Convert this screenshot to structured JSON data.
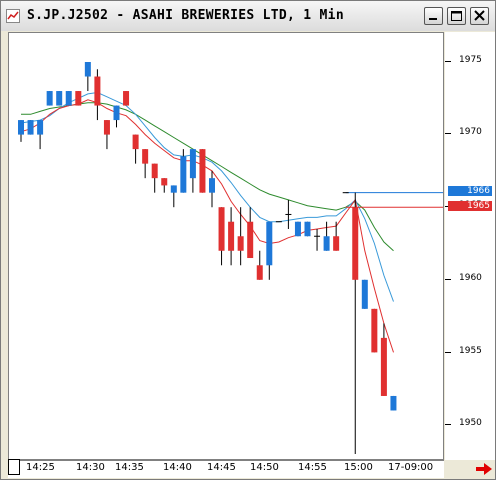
{
  "window": {
    "title": "S.JP.J2502 - ASAHI BREWERIES LTD, 1 Min",
    "controls": [
      "minimize",
      "maximize",
      "close"
    ]
  },
  "icons": {
    "app": "chart-app-icon",
    "nav": "red-right-arrow-icon"
  },
  "colors": {
    "up_bar": "#1e78d8",
    "down_bar": "#e03030",
    "ma_fast": "#e03030",
    "ma_mid": "#3a9ad9",
    "ma_slow": "#2e8b2e",
    "last_line_blue": "#1e78d8",
    "last_line_red": "#e03030"
  },
  "chart_data": {
    "type": "candlestick",
    "ylim": [
      1948,
      1977
    ],
    "yticks": [
      "1975",
      "1970",
      "1965",
      "1960",
      "1955",
      "1950"
    ],
    "ytick_values": [
      1975,
      1970,
      1965,
      1960,
      1955,
      1950
    ],
    "x_labels": [
      "14:25",
      "14:30",
      "14:35",
      "14:40",
      "14:45",
      "14:50",
      "14:55",
      "15:00",
      "17-09:00"
    ],
    "last_price_tags": [
      {
        "label": "1966",
        "value": 1966,
        "color": "blue"
      },
      {
        "label": "1965",
        "value": 1965,
        "color": "red"
      }
    ],
    "candles": [
      {
        "o": 1970.0,
        "h": 1971,
        "l": 1969.5,
        "c": 1971.0
      },
      {
        "o": 1970.0,
        "h": 1971,
        "l": 1970,
        "c": 1971.0
      },
      {
        "o": 1970.0,
        "h": 1971,
        "l": 1969,
        "c": 1971.0
      },
      {
        "o": 1972.0,
        "h": 1973,
        "l": 1972,
        "c": 1973.0
      },
      {
        "o": 1972.0,
        "h": 1973,
        "l": 1972,
        "c": 1973.0
      },
      {
        "o": 1972.0,
        "h": 1973,
        "l": 1972,
        "c": 1973.0
      },
      {
        "o": 1973.0,
        "h": 1973,
        "l": 1972,
        "c": 1972.0
      },
      {
        "o": 1974.0,
        "h": 1975,
        "l": 1973,
        "c": 1975.0
      },
      {
        "o": 1974.0,
        "h": 1974.5,
        "l": 1971,
        "c": 1972.0
      },
      {
        "o": 1971.0,
        "h": 1971,
        "l": 1969,
        "c": 1970.0
      },
      {
        "o": 1971.0,
        "h": 1972,
        "l": 1970.5,
        "c": 1972.0
      },
      {
        "o": 1973.0,
        "h": 1973,
        "l": 1972,
        "c": 1972.0
      },
      {
        "o": 1970.0,
        "h": 1970,
        "l": 1968,
        "c": 1969.0
      },
      {
        "o": 1969.0,
        "h": 1969,
        "l": 1967,
        "c": 1968.0
      },
      {
        "o": 1968.0,
        "h": 1968,
        "l": 1966,
        "c": 1967.0
      },
      {
        "o": 1967.0,
        "h": 1967,
        "l": 1966,
        "c": 1966.5
      },
      {
        "o": 1966.0,
        "h": 1966.5,
        "l": 1965,
        "c": 1966.5
      },
      {
        "o": 1966.0,
        "h": 1969,
        "l": 1966,
        "c": 1968.5
      },
      {
        "o": 1967.0,
        "h": 1969,
        "l": 1966,
        "c": 1969.0
      },
      {
        "o": 1969.0,
        "h": 1969,
        "l": 1966,
        "c": 1966.0
      },
      {
        "o": 1966.0,
        "h": 1967.5,
        "l": 1965,
        "c": 1967.0
      },
      {
        "o": 1965.0,
        "h": 1965,
        "l": 1961,
        "c": 1962.0
      },
      {
        "o": 1964.0,
        "h": 1965,
        "l": 1961,
        "c": 1962.0
      },
      {
        "o": 1963.0,
        "h": 1965,
        "l": 1961,
        "c": 1962.0
      },
      {
        "o": 1964.0,
        "h": 1965,
        "l": 1961.5,
        "c": 1961.5
      },
      {
        "o": 1961.0,
        "h": 1962,
        "l": 1960,
        "c": 1960.0
      },
      {
        "o": 1961.0,
        "h": 1964,
        "l": 1960,
        "c": 1964.0
      },
      {
        "o": 1964.0,
        "h": 1964,
        "l": 1964,
        "c": 1964.0
      },
      {
        "o": 1964.5,
        "h": 1965.5,
        "l": 1963.5,
        "c": 1964.5
      },
      {
        "o": 1963.0,
        "h": 1964,
        "l": 1963,
        "c": 1964.0
      },
      {
        "o": 1963.0,
        "h": 1964,
        "l": 1963,
        "c": 1964.0
      },
      {
        "o": 1963.0,
        "h": 1963.5,
        "l": 1962,
        "c": 1963.0
      },
      {
        "o": 1962.0,
        "h": 1964,
        "l": 1962,
        "c": 1963.0
      },
      {
        "o": 1963.0,
        "h": 1964,
        "l": 1962,
        "c": 1962.0
      },
      {
        "o": 1966.0,
        "h": 1966,
        "l": 1966,
        "c": 1966.0
      },
      {
        "o": 1965.0,
        "h": 1966,
        "l": 1948,
        "c": 1960.0
      },
      {
        "o": 1958.0,
        "h": 1960,
        "l": 1958,
        "c": 1960.0
      },
      {
        "o": 1958.0,
        "h": 1958,
        "l": 1955,
        "c": 1955.0
      },
      {
        "o": 1956.0,
        "h": 1957,
        "l": 1952,
        "c": 1952.0
      },
      {
        "o": 1951.0,
        "h": 1952,
        "l": 1951,
        "c": 1952.0
      }
    ],
    "ma_fast": [
      1970.2,
      1970.4,
      1970.8,
      1971.4,
      1971.8,
      1972.0,
      1972.1,
      1972.4,
      1972.2,
      1971.8,
      1971.5,
      1971.3,
      1970.7,
      1970.0,
      1969.4,
      1968.9,
      1968.4,
      1968.2,
      1968.2,
      1967.9,
      1967.5,
      1966.6,
      1965.4,
      1964.5,
      1963.7,
      1962.7,
      1962.5,
      1962.6,
      1962.9,
      1963.1,
      1963.4,
      1963.5,
      1963.6,
      1963.7,
      1964.6,
      1965.5,
      1962.0,
      1959.4,
      1957.0,
      1955.0
    ],
    "ma_mid": [
      1970.8,
      1970.9,
      1971.0,
      1971.3,
      1971.8,
      1972.2,
      1972.5,
      1972.8,
      1972.9,
      1972.6,
      1972.3,
      1972.0,
      1971.4,
      1970.6,
      1969.8,
      1969.1,
      1968.6,
      1968.5,
      1968.6,
      1968.4,
      1968.1,
      1967.5,
      1966.7,
      1965.8,
      1965.0,
      1964.3,
      1964.0,
      1964.0,
      1964.1,
      1964.2,
      1964.3,
      1964.3,
      1964.4,
      1964.4,
      1964.9,
      1965.5,
      1964.2,
      1962.5,
      1960.3,
      1958.5
    ],
    "ma_slow": [
      1971.4,
      1971.4,
      1971.6,
      1971.8,
      1971.9,
      1972.0,
      1972.1,
      1972.2,
      1972.2,
      1972.1,
      1971.9,
      1971.7,
      1971.4,
      1971.0,
      1970.6,
      1970.2,
      1969.8,
      1969.4,
      1969.0,
      1968.6,
      1968.2,
      1967.8,
      1967.4,
      1967.0,
      1966.6,
      1966.2,
      1965.9,
      1965.7,
      1965.5,
      1965.3,
      1965.1,
      1965.0,
      1964.9,
      1964.8,
      1965.0,
      1965.4,
      1964.8,
      1963.6,
      1962.6,
      1962.0
    ],
    "last_blue": 1966,
    "last_red": 1965,
    "last_line_start_index": 34
  }
}
